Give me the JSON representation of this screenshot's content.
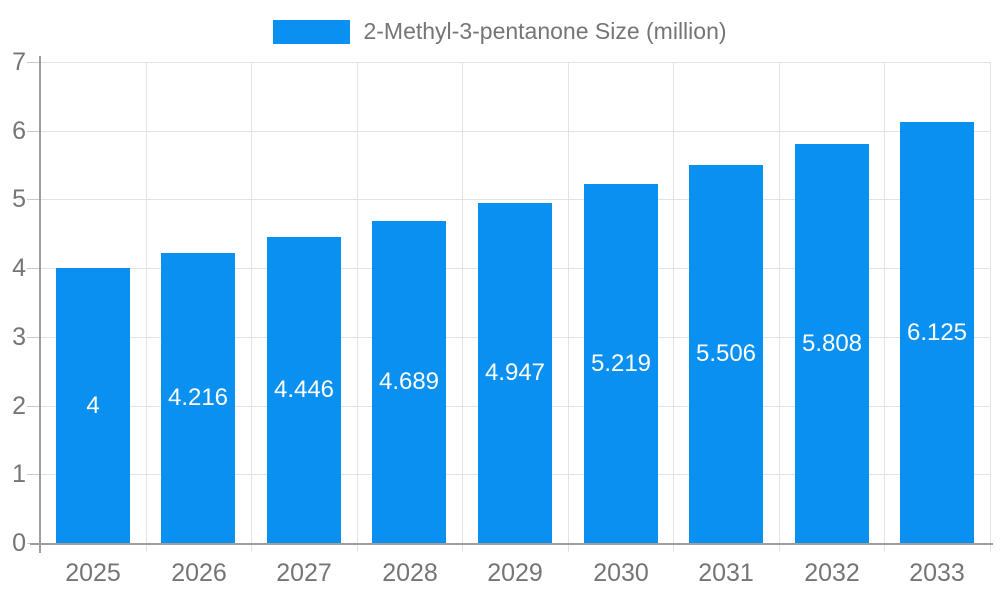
{
  "legend": {
    "label": "2-Methyl-3-pentanone Size (million)"
  },
  "chart_data": {
    "type": "bar",
    "title": "2-Methyl-3-pentanone Size (million)",
    "series_name": "2-Methyl-3-pentanone Size (million)",
    "categories": [
      "2025",
      "2026",
      "2027",
      "2028",
      "2029",
      "2030",
      "2031",
      "2032",
      "2033"
    ],
    "values": [
      4,
      4.216,
      4.446,
      4.689,
      4.947,
      5.219,
      5.506,
      5.808,
      6.125
    ],
    "data_labels": [
      "4",
      "4.216",
      "4.446",
      "4.689",
      "4.947",
      "5.219",
      "5.506",
      "5.808",
      "6.125"
    ],
    "xlabel": "",
    "ylabel": "",
    "ylim": [
      0,
      7
    ],
    "yticks": [
      0,
      1,
      2,
      3,
      4,
      5,
      6,
      7
    ],
    "grid": true,
    "legend_position": "top-center",
    "value_labels_position": "inside-center"
  },
  "colors": {
    "bar": "#0a90f0",
    "grid": "#e3e3e3",
    "axis": "#9e9e9e",
    "tick": "#c9c9c9",
    "text": "#757575",
    "value_label": "#ffffff",
    "background": "#ffffff"
  }
}
